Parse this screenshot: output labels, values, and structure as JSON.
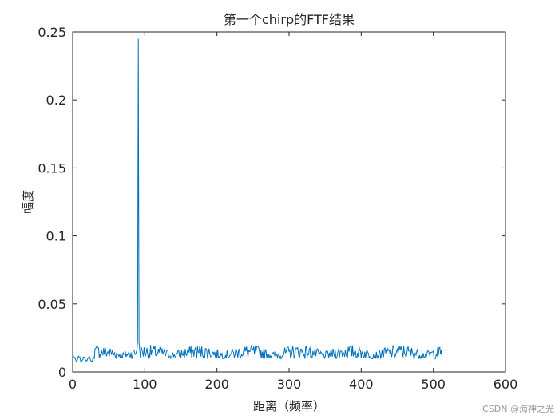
{
  "chart_data": {
    "type": "line",
    "title": "第一个chirp的FTF结果",
    "xlabel": "距离（频率）",
    "ylabel": "幅度",
    "xlim": [
      0,
      600
    ],
    "ylim": [
      0,
      0.25
    ],
    "xticks": [
      "0",
      "100",
      "200",
      "300",
      "400",
      "500",
      "600"
    ],
    "yticks": [
      "0",
      "0.05",
      "0.1",
      "0.15",
      "0.2",
      "0.25"
    ],
    "grid": false,
    "series": [
      {
        "color": "#0072BD",
        "x_range": [
          1,
          512
        ],
        "noise_band": [
          0.004,
          0.02
        ],
        "peak": {
          "x": 91,
          "y": 0.245
        }
      }
    ]
  },
  "watermark": "CSDN @海神之光"
}
